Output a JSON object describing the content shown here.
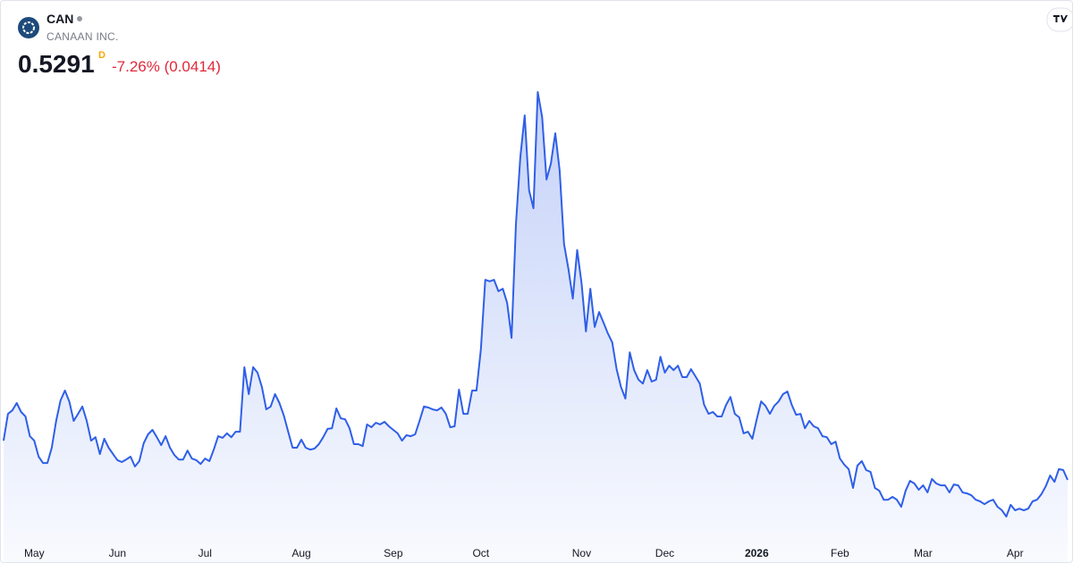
{
  "header": {
    "symbol": "CAN",
    "company": "CANAAN INC.",
    "price": "0.5291",
    "interval": "D",
    "change": "-7.26% (0.0414)"
  },
  "chart_data": {
    "type": "area",
    "color": "#2f5fe8",
    "xlim": [
      0,
      243
    ],
    "xticks": [
      {
        "value": 7,
        "label": "May"
      },
      {
        "value": 26,
        "label": "Jun"
      },
      {
        "value": 46,
        "label": "Jul"
      },
      {
        "value": 68,
        "label": "Aug"
      },
      {
        "value": 89,
        "label": "Sep"
      },
      {
        "value": 109,
        "label": "Oct"
      },
      {
        "value": 132,
        "label": "Nov"
      },
      {
        "value": 151,
        "label": "Dec"
      },
      {
        "value": 172,
        "label": "2026",
        "bold": true
      },
      {
        "value": 191,
        "label": "Feb"
      },
      {
        "value": 210,
        "label": "Mar"
      },
      {
        "value": 231,
        "label": "Apr"
      }
    ],
    "ylim": [
      0.35,
      1.8
    ],
    "values": [
      0.652,
      0.736,
      0.747,
      0.77,
      0.742,
      0.728,
      0.666,
      0.652,
      0.602,
      0.582,
      0.582,
      0.63,
      0.714,
      0.778,
      0.809,
      0.775,
      0.714,
      0.736,
      0.759,
      0.714,
      0.652,
      0.663,
      0.61,
      0.658,
      0.63,
      0.61,
      0.591,
      0.585,
      0.593,
      0.602,
      0.571,
      0.588,
      0.644,
      0.672,
      0.686,
      0.663,
      0.638,
      0.666,
      0.63,
      0.607,
      0.593,
      0.593,
      0.621,
      0.596,
      0.591,
      0.579,
      0.596,
      0.588,
      0.624,
      0.666,
      0.661,
      0.675,
      0.663,
      0.68,
      0.68,
      0.882,
      0.798,
      0.882,
      0.865,
      0.82,
      0.75,
      0.759,
      0.798,
      0.77,
      0.731,
      0.68,
      0.63,
      0.63,
      0.655,
      0.63,
      0.624,
      0.627,
      0.641,
      0.663,
      0.689,
      0.691,
      0.753,
      0.722,
      0.719,
      0.691,
      0.641,
      0.641,
      0.635,
      0.703,
      0.694,
      0.708,
      0.703,
      0.711,
      0.697,
      0.686,
      0.675,
      0.652,
      0.669,
      0.666,
      0.672,
      0.714,
      0.759,
      0.756,
      0.75,
      0.747,
      0.756,
      0.736,
      0.694,
      0.697,
      0.812,
      0.736,
      0.736,
      0.809,
      0.809,
      0.938,
      1.156,
      1.151,
      1.156,
      1.12,
      1.128,
      1.083,
      0.974,
      1.33,
      1.54,
      1.671,
      1.436,
      1.38,
      1.744,
      1.666,
      1.47,
      1.52,
      1.615,
      1.498,
      1.268,
      1.19,
      1.097,
      1.249,
      1.145,
      0.994,
      1.128,
      1.008,
      1.055,
      1.022,
      0.988,
      0.96,
      0.876,
      0.82,
      0.784,
      0.929,
      0.873,
      0.843,
      0.831,
      0.873,
      0.837,
      0.843,
      0.915,
      0.865,
      0.887,
      0.873,
      0.887,
      0.851,
      0.851,
      0.876,
      0.854,
      0.831,
      0.764,
      0.736,
      0.742,
      0.728,
      0.728,
      0.764,
      0.789,
      0.736,
      0.725,
      0.675,
      0.68,
      0.658,
      0.719,
      0.775,
      0.761,
      0.736,
      0.761,
      0.775,
      0.798,
      0.806,
      0.764,
      0.733,
      0.736,
      0.691,
      0.714,
      0.697,
      0.691,
      0.666,
      0.663,
      0.641,
      0.649,
      0.596,
      0.577,
      0.563,
      0.504,
      0.574,
      0.588,
      0.56,
      0.554,
      0.504,
      0.495,
      0.467,
      0.467,
      0.476,
      0.467,
      0.445,
      0.495,
      0.526,
      0.518,
      0.498,
      0.512,
      0.49,
      0.532,
      0.518,
      0.512,
      0.512,
      0.49,
      0.515,
      0.512,
      0.49,
      0.487,
      0.481,
      0.467,
      0.462,
      0.453,
      0.462,
      0.467,
      0.445,
      0.434,
      0.414,
      0.451,
      0.434,
      0.439,
      0.434,
      0.439,
      0.462,
      0.467,
      0.484,
      0.509,
      0.543,
      0.523,
      0.563,
      0.56,
      0.5291
    ]
  }
}
